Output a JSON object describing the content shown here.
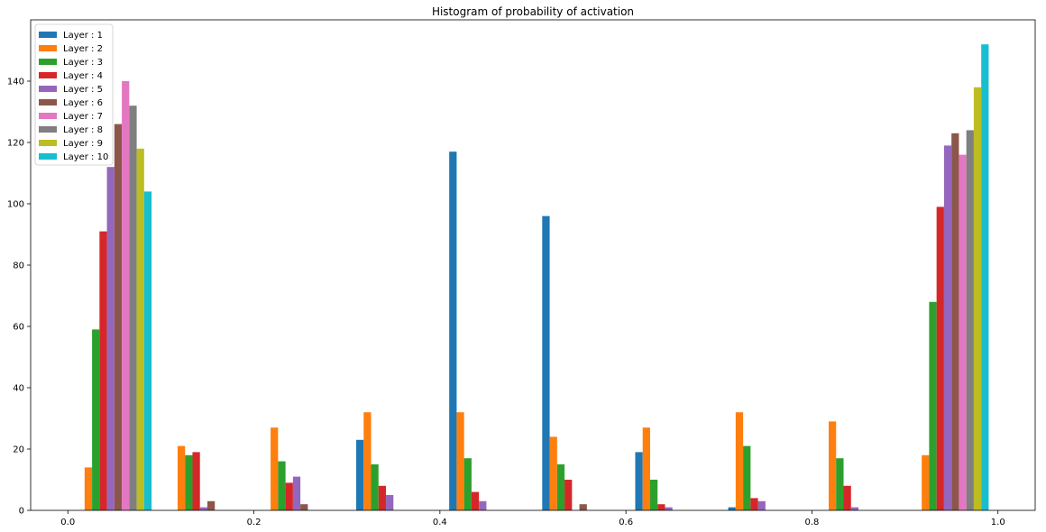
{
  "chart_data": {
    "type": "bar",
    "title": "Histogram of probability of activation",
    "xlabel": "",
    "ylabel": "",
    "xlim": [
      -0.04,
      1.04
    ],
    "ylim": [
      0,
      160
    ],
    "x_ticks": [
      "0.0",
      "0.2",
      "0.4",
      "0.6",
      "0.8",
      "1.0"
    ],
    "y_ticks": [
      "0",
      "20",
      "40",
      "60",
      "80",
      "100",
      "120",
      "140"
    ],
    "bin_edges": [
      0.0,
      0.1,
      0.2,
      0.3,
      0.4,
      0.5,
      0.6,
      0.7,
      0.8,
      0.9,
      1.0
    ],
    "legend_position": "top-left",
    "grid": false,
    "series": [
      {
        "name": "Layer : 1",
        "color": "#1f77b4",
        "values": [
          0,
          0,
          0,
          23,
          117,
          96,
          19,
          1,
          0,
          0
        ]
      },
      {
        "name": "Layer : 2",
        "color": "#ff7f0e",
        "values": [
          14,
          21,
          27,
          32,
          32,
          24,
          27,
          32,
          29,
          18
        ]
      },
      {
        "name": "Layer : 3",
        "color": "#2ca02c",
        "values": [
          59,
          18,
          16,
          15,
          17,
          15,
          10,
          21,
          17,
          68
        ]
      },
      {
        "name": "Layer : 4",
        "color": "#d62728",
        "values": [
          91,
          19,
          9,
          8,
          6,
          10,
          2,
          4,
          8,
          99
        ]
      },
      {
        "name": "Layer : 5",
        "color": "#9467bd",
        "values": [
          112,
          1,
          11,
          5,
          3,
          0,
          1,
          3,
          1,
          119
        ]
      },
      {
        "name": "Layer : 6",
        "color": "#8c564b",
        "values": [
          126,
          3,
          2,
          0,
          0,
          2,
          0,
          0,
          0,
          123
        ]
      },
      {
        "name": "Layer : 7",
        "color": "#e377c2",
        "values": [
          140,
          0,
          0,
          0,
          0,
          0,
          0,
          0,
          0,
          116
        ]
      },
      {
        "name": "Layer : 8",
        "color": "#7f7f7f",
        "values": [
          132,
          0,
          0,
          0,
          0,
          0,
          0,
          0,
          0,
          124
        ]
      },
      {
        "name": "Layer : 9",
        "color": "#bcbd22",
        "values": [
          118,
          0,
          0,
          0,
          0,
          0,
          0,
          0,
          0,
          138
        ]
      },
      {
        "name": "Layer : 10",
        "color": "#17becf",
        "values": [
          104,
          0,
          0,
          0,
          0,
          0,
          0,
          0,
          0,
          152
        ]
      }
    ]
  }
}
